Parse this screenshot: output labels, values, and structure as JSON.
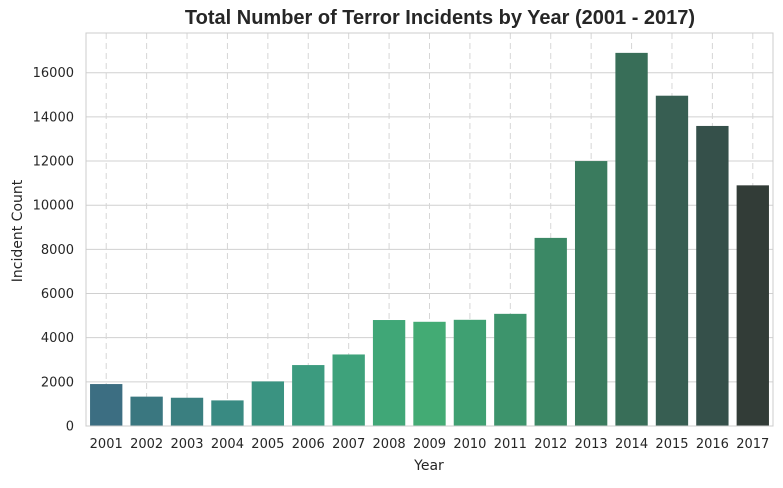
{
  "chart_data": {
    "type": "bar",
    "title": "Total Number of Terror Incidents by Year (2001 - 2017)",
    "xlabel": "Year",
    "ylabel": "Incident Count",
    "categories": [
      "2001",
      "2002",
      "2003",
      "2004",
      "2005",
      "2006",
      "2007",
      "2008",
      "2009",
      "2010",
      "2011",
      "2012",
      "2013",
      "2014",
      "2015",
      "2016",
      "2017"
    ],
    "values": [
      1900,
      1330,
      1280,
      1160,
      2020,
      2760,
      3240,
      4800,
      4720,
      4810,
      5080,
      8520,
      12000,
      16900,
      14960,
      13590,
      10900
    ],
    "ylim": [
      0,
      17800
    ],
    "yticks": [
      "0",
      "2000",
      "4000",
      "6000",
      "8000",
      "10000",
      "12000",
      "14000",
      "16000"
    ],
    "grid": true,
    "colors": [
      "#3c6e82",
      "#3a7780",
      "#3a7f80",
      "#398a82",
      "#3a9381",
      "#3c9b7f",
      "#3ea27b",
      "#40a777",
      "#43ab74",
      "#3fa072",
      "#3d946c",
      "#3b8865",
      "#3a7b5e",
      "#386e58",
      "#375e52",
      "#35504a",
      "#323c37"
    ]
  }
}
